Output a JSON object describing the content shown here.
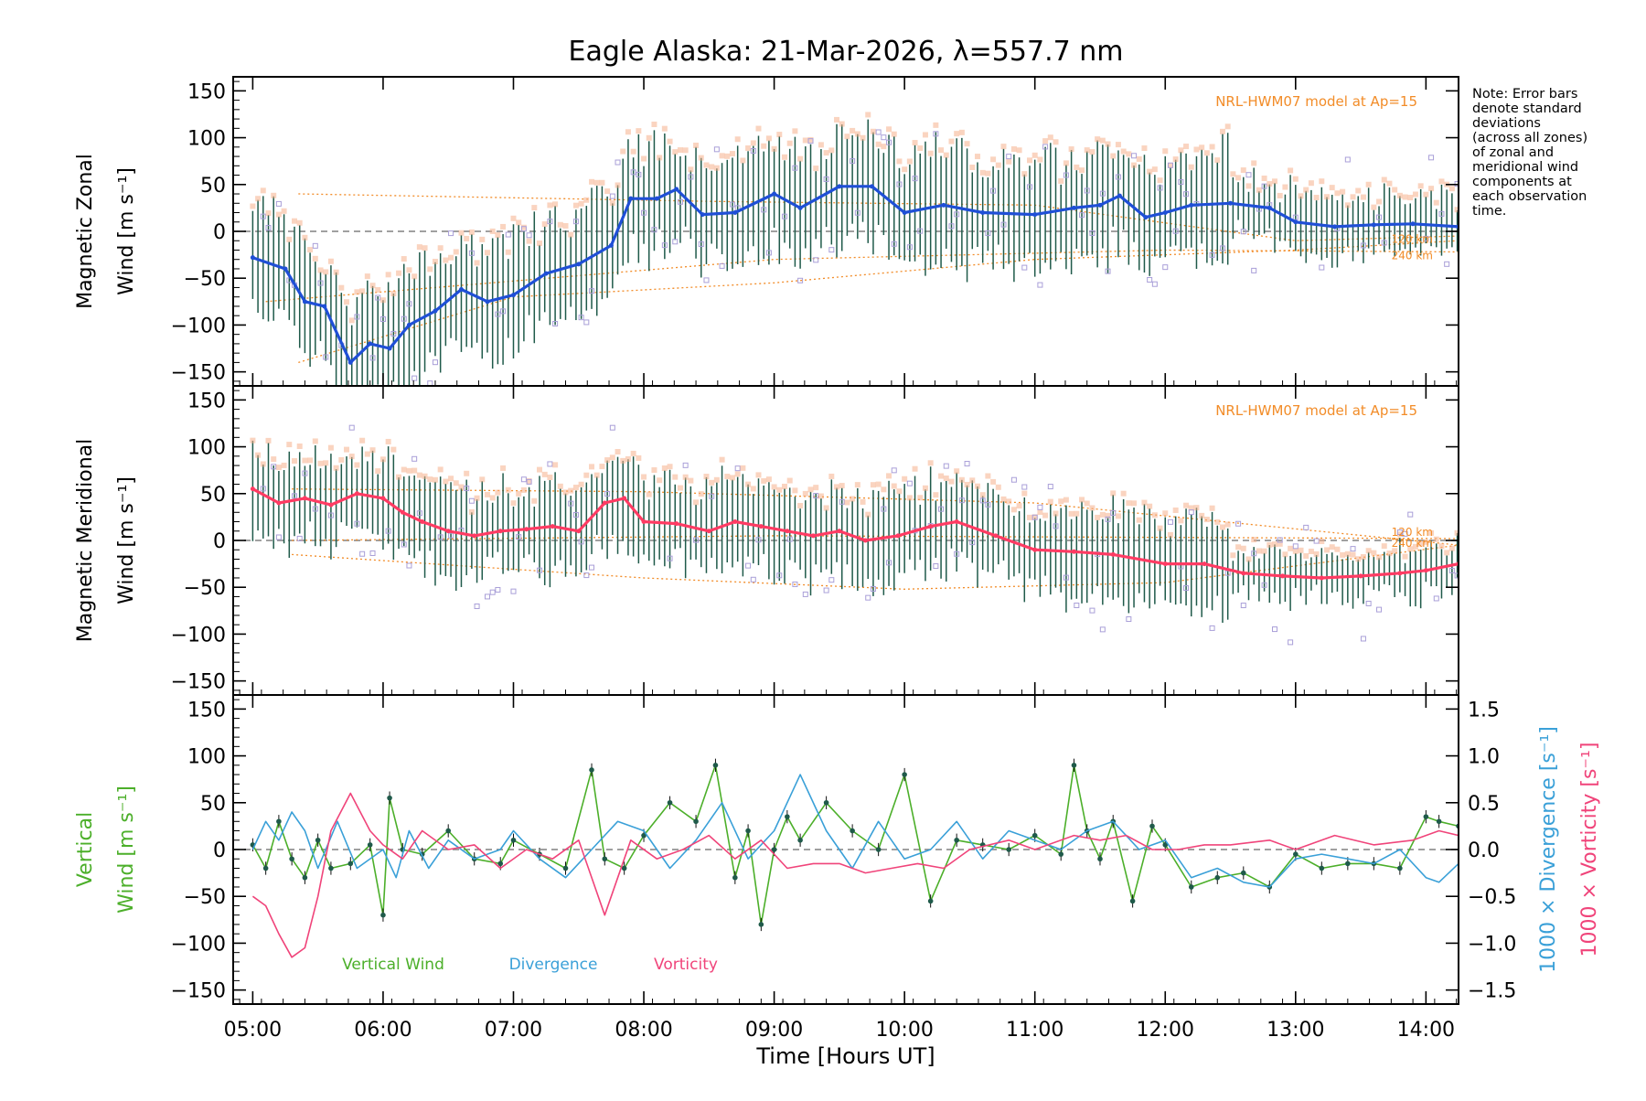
{
  "chart_data": [
    {
      "type": "line",
      "panel": "zonal",
      "title": "Eagle Alaska: 21-Mar-2026, λ=557.7 nm",
      "ylabel_line1": "Magnetic Zonal",
      "ylabel_line2": "Wind [m s⁻¹]",
      "ylim": [
        -165,
        165
      ],
      "yticks": [
        -150,
        -100,
        -50,
        0,
        50,
        100,
        150
      ],
      "model_label": "NRL-HWM07 model at Ap=15",
      "model_alt_labels": [
        "120 km",
        "240 km"
      ],
      "series": [
        {
          "name": "Mean zonal wind",
          "color": "#1f4fd6",
          "x": [
            5.0,
            5.25,
            5.4,
            5.55,
            5.75,
            5.9,
            6.05,
            6.2,
            6.4,
            6.6,
            6.8,
            7.0,
            7.25,
            7.5,
            7.75,
            7.9,
            8.1,
            8.25,
            8.45,
            8.7,
            9.0,
            9.2,
            9.5,
            9.75,
            10.0,
            10.3,
            10.6,
            11.0,
            11.3,
            11.5,
            11.65,
            11.85,
            12.0,
            12.2,
            12.5,
            12.8,
            13.0,
            13.3,
            13.6,
            13.9,
            14.25
          ],
          "y": [
            -28,
            -40,
            -75,
            -80,
            -140,
            -120,
            -125,
            -100,
            -85,
            -62,
            -75,
            -68,
            -45,
            -35,
            -15,
            35,
            35,
            45,
            18,
            20,
            40,
            25,
            48,
            48,
            20,
            28,
            20,
            18,
            25,
            28,
            38,
            15,
            20,
            28,
            30,
            25,
            10,
            5,
            7,
            8,
            5
          ]
        }
      ]
    },
    {
      "type": "line",
      "panel": "meridional",
      "ylabel_line1": "Magnetic Meridional",
      "ylabel_line2": "Wind [m s⁻¹]",
      "ylim": [
        -165,
        165
      ],
      "yticks": [
        -150,
        -100,
        -50,
        0,
        50,
        100,
        150
      ],
      "model_label": "NRL-HWM07 model at Ap=15",
      "model_alt_labels": [
        "120 km",
        "240 km"
      ],
      "series": [
        {
          "name": "Mean meridional wind",
          "color": "#ff3b63",
          "x": [
            5.0,
            5.2,
            5.4,
            5.6,
            5.8,
            6.0,
            6.15,
            6.3,
            6.5,
            6.7,
            6.9,
            7.1,
            7.3,
            7.5,
            7.7,
            7.85,
            8.0,
            8.25,
            8.5,
            8.7,
            8.9,
            9.1,
            9.3,
            9.5,
            9.7,
            9.95,
            10.2,
            10.4,
            10.7,
            11.0,
            11.3,
            11.6,
            12.0,
            12.3,
            12.6,
            12.9,
            13.2,
            13.5,
            13.8,
            14.0,
            14.25
          ],
          "y": [
            55,
            40,
            45,
            38,
            50,
            45,
            30,
            20,
            10,
            5,
            10,
            12,
            15,
            10,
            40,
            45,
            20,
            18,
            10,
            20,
            15,
            10,
            5,
            10,
            0,
            5,
            15,
            20,
            5,
            -10,
            -12,
            -15,
            -25,
            -25,
            -35,
            -38,
            -40,
            -38,
            -35,
            -32,
            -25
          ]
        }
      ]
    },
    {
      "type": "line",
      "panel": "vertical",
      "ylabel_line1": "Vertical",
      "ylabel_line2": "Wind [m s⁻¹]",
      "right_label_1": "1000 × Divergence [s⁻¹]",
      "right_label_2": "1000 × Vorticity [s⁻¹]",
      "ylim": [
        -165,
        165
      ],
      "yticks": [
        -150,
        -100,
        -50,
        0,
        50,
        100,
        150
      ],
      "y2lim": [
        -1.65,
        1.65
      ],
      "y2ticks": [
        -1.5,
        -1.0,
        -0.5,
        0.0,
        0.5,
        1.0,
        1.5
      ],
      "y2ticklabels": [
        "−1.5",
        "−1.0",
        "−0.5",
        "0.0",
        "0.5",
        "1.0",
        "1.5"
      ],
      "legend": [
        "Vertical Wind",
        "Divergence",
        "Vorticity"
      ],
      "series": [
        {
          "name": "Vertical Wind",
          "color": "#4caf2a",
          "x": [
            5.0,
            5.1,
            5.2,
            5.3,
            5.4,
            5.5,
            5.6,
            5.75,
            5.9,
            6.0,
            6.05,
            6.15,
            6.3,
            6.5,
            6.7,
            6.9,
            7.0,
            7.2,
            7.4,
            7.6,
            7.7,
            7.85,
            8.0,
            8.2,
            8.4,
            8.55,
            8.7,
            8.8,
            8.9,
            9.0,
            9.1,
            9.2,
            9.4,
            9.6,
            9.8,
            10.0,
            10.2,
            10.4,
            10.6,
            10.8,
            11.0,
            11.2,
            11.3,
            11.4,
            11.5,
            11.6,
            11.75,
            11.9,
            12.0,
            12.2,
            12.4,
            12.6,
            12.8,
            13.0,
            13.2,
            13.4,
            13.6,
            13.8,
            14.0,
            14.1,
            14.25
          ],
          "y": [
            5,
            -20,
            30,
            -10,
            -30,
            10,
            -20,
            -15,
            5,
            -70,
            55,
            0,
            -5,
            20,
            -10,
            -15,
            10,
            -5,
            -20,
            85,
            -10,
            -20,
            15,
            50,
            30,
            90,
            -30,
            20,
            -80,
            0,
            35,
            10,
            50,
            20,
            0,
            80,
            -55,
            10,
            5,
            0,
            15,
            -5,
            90,
            20,
            -10,
            30,
            -55,
            25,
            5,
            -40,
            -30,
            -25,
            -40,
            -5,
            -20,
            -15,
            -15,
            -20,
            35,
            30,
            25
          ]
        },
        {
          "name": "Divergence",
          "color": "#3aa0d8",
          "x": [
            5.0,
            5.1,
            5.2,
            5.3,
            5.4,
            5.5,
            5.65,
            5.8,
            6.0,
            6.1,
            6.2,
            6.35,
            6.5,
            6.7,
            6.9,
            7.0,
            7.2,
            7.4,
            7.6,
            7.8,
            8.0,
            8.2,
            8.4,
            8.6,
            8.8,
            9.0,
            9.2,
            9.4,
            9.6,
            9.8,
            10.0,
            10.2,
            10.4,
            10.6,
            10.8,
            11.0,
            11.2,
            11.4,
            11.6,
            11.8,
            12.0,
            12.2,
            12.4,
            12.6,
            12.8,
            13.0,
            13.2,
            13.4,
            13.6,
            13.8,
            14.0,
            14.1,
            14.25
          ],
          "y": [
            0.0,
            0.3,
            0.1,
            0.4,
            0.2,
            -0.2,
            0.3,
            -0.2,
            0.0,
            -0.3,
            0.2,
            -0.2,
            0.1,
            -0.1,
            0.0,
            0.2,
            -0.1,
            -0.3,
            0.0,
            0.3,
            0.2,
            -0.2,
            0.1,
            0.5,
            -0.1,
            0.2,
            0.8,
            0.2,
            -0.2,
            0.3,
            -0.1,
            0.0,
            0.3,
            -0.1,
            0.2,
            0.1,
            0.0,
            0.2,
            0.3,
            0.0,
            0.1,
            -0.3,
            -0.2,
            -0.35,
            -0.4,
            -0.1,
            -0.05,
            -0.1,
            -0.15,
            0.0,
            -0.3,
            -0.35,
            -0.15
          ]
        },
        {
          "name": "Vorticity",
          "color": "#f0447a",
          "x": [
            5.0,
            5.1,
            5.2,
            5.3,
            5.4,
            5.5,
            5.6,
            5.75,
            5.9,
            6.0,
            6.15,
            6.3,
            6.5,
            6.7,
            6.9,
            7.1,
            7.3,
            7.5,
            7.7,
            7.9,
            8.1,
            8.3,
            8.5,
            8.7,
            8.9,
            9.1,
            9.3,
            9.5,
            9.7,
            9.9,
            10.1,
            10.3,
            10.5,
            10.8,
            11.0,
            11.3,
            11.5,
            11.7,
            11.9,
            12.1,
            12.3,
            12.5,
            12.8,
            13.0,
            13.3,
            13.6,
            13.9,
            14.1,
            14.25
          ],
          "y": [
            -0.5,
            -0.6,
            -0.9,
            -1.15,
            -1.05,
            -0.5,
            0.2,
            0.6,
            0.2,
            0.05,
            -0.1,
            0.2,
            0.0,
            0.05,
            -0.2,
            0.0,
            -0.1,
            0.1,
            -0.7,
            0.1,
            -0.1,
            0.0,
            0.15,
            -0.1,
            0.1,
            -0.2,
            -0.15,
            -0.15,
            -0.25,
            -0.2,
            -0.15,
            -0.2,
            0.0,
            0.1,
            0.0,
            0.15,
            0.1,
            0.15,
            0.0,
            0.0,
            0.05,
            0.05,
            0.1,
            0.0,
            0.15,
            0.05,
            0.1,
            0.2,
            0.15
          ]
        }
      ]
    }
  ],
  "xaxis": {
    "label": "Time [Hours UT]",
    "range": [
      4.85,
      14.25
    ],
    "ticks": [
      5,
      6,
      7,
      8,
      9,
      10,
      11,
      12,
      13,
      14
    ],
    "ticklabels": [
      "05:00",
      "06:00",
      "07:00",
      "08:00",
      "09:00",
      "10:00",
      "11:00",
      "12:00",
      "13:00",
      "14:00"
    ]
  },
  "note": "Note: Error bars denote standard deviations (across all zones) of zonal and meridional wind components at each observation time.",
  "note_lines": [
    "Note: Error bars",
    "denote standard",
    "deviations",
    "(across all zones)",
    "of zonal and",
    "meridional wind",
    "components at",
    "each observation",
    "time."
  ],
  "colors": {
    "axes": "#000000",
    "zero_line": "#808080",
    "model": "#f28c28",
    "error_bar": "#1f5a4a",
    "scatter": "#a99fd8"
  }
}
